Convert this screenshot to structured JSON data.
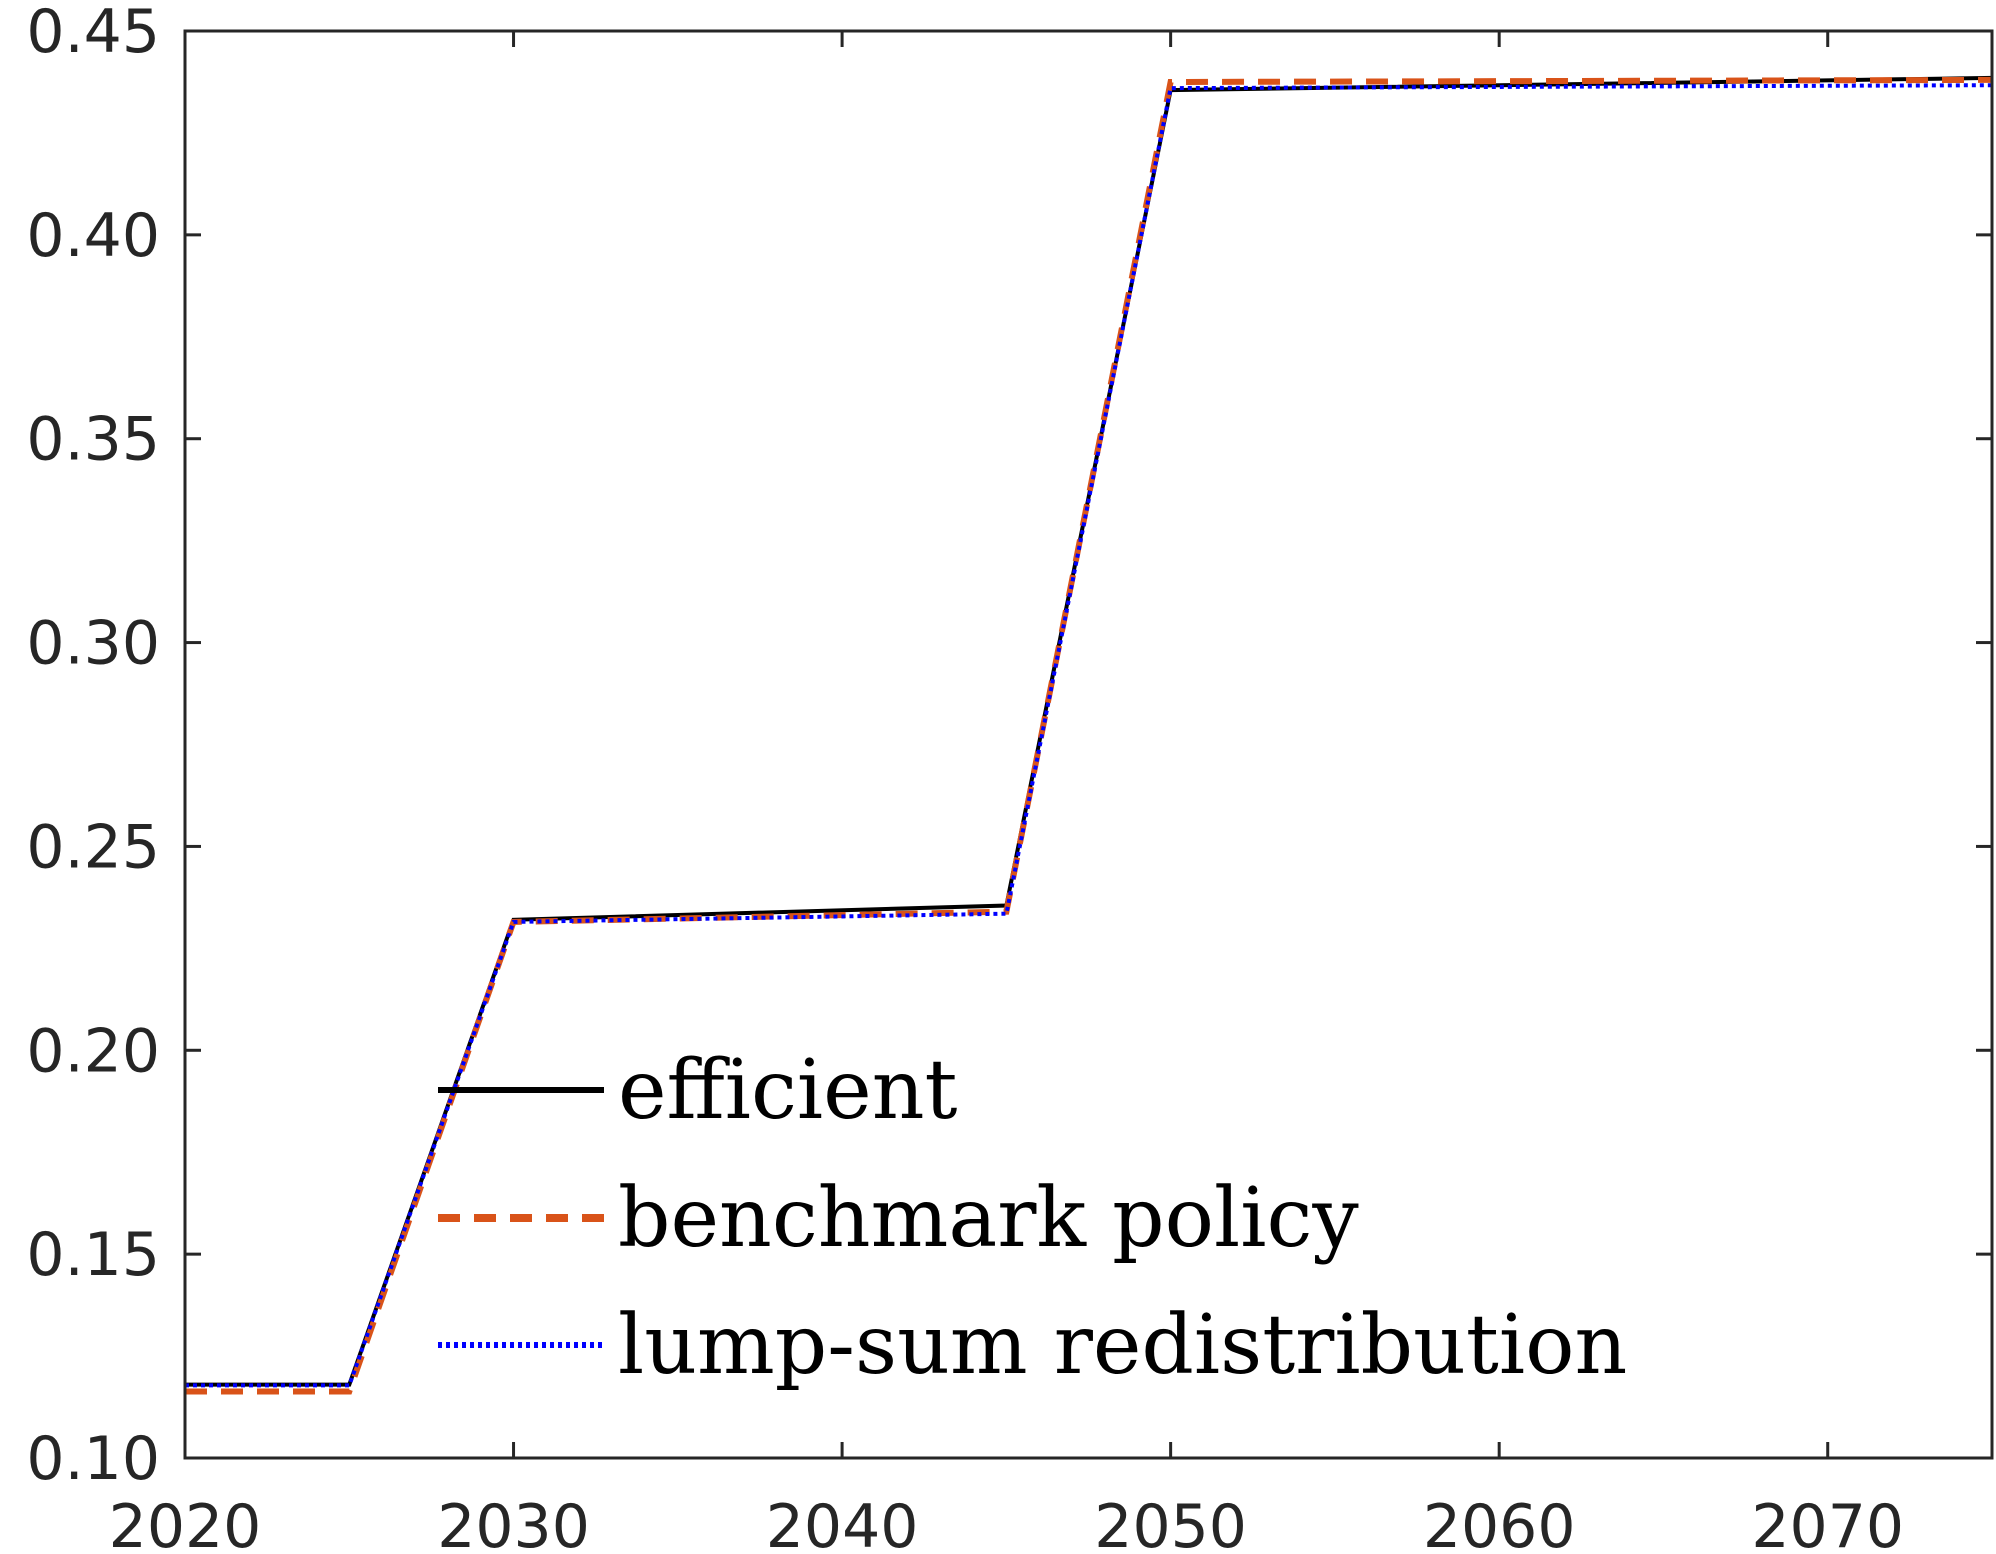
{
  "chart_data": {
    "type": "line",
    "title": "",
    "xlabel": "",
    "ylabel": "",
    "xlim": [
      2020,
      2075
    ],
    "ylim": [
      0.1,
      0.45
    ],
    "xticks": [
      2020,
      2030,
      2040,
      2050,
      2060,
      2070
    ],
    "xtick_labels": [
      "2020",
      "2030",
      "2040",
      "2050",
      "2060",
      "2070"
    ],
    "yticks": [
      0.1,
      0.15,
      0.2,
      0.25,
      0.3,
      0.35,
      0.4,
      0.45
    ],
    "ytick_labels": [
      "0.10",
      "0.15",
      "0.20",
      "0.25",
      "0.30",
      "0.35",
      "0.40",
      "0.45"
    ],
    "grid": false,
    "legend_position": "bottom-center",
    "series": [
      {
        "name": "efficient",
        "color": "#000000",
        "style": "solid",
        "x": [
          2020,
          2025,
          2030,
          2045,
          2050,
          2075
        ],
        "y": [
          0.118,
          0.118,
          0.232,
          0.2355,
          0.4355,
          0.4385
        ]
      },
      {
        "name": "benchmark policy",
        "color": "#D95319",
        "style": "dashed",
        "x": [
          2020,
          2025,
          2030,
          2045,
          2050,
          2075
        ],
        "y": [
          0.1163,
          0.1163,
          0.2315,
          0.234,
          0.4375,
          0.438
        ]
      },
      {
        "name": "lump-sum redistribution",
        "color": "#0000FF",
        "style": "dotted",
        "x": [
          2020,
          2025,
          2030,
          2045,
          2050,
          2075
        ],
        "y": [
          0.1178,
          0.1178,
          0.2315,
          0.2335,
          0.436,
          0.4367
        ]
      }
    ]
  }
}
